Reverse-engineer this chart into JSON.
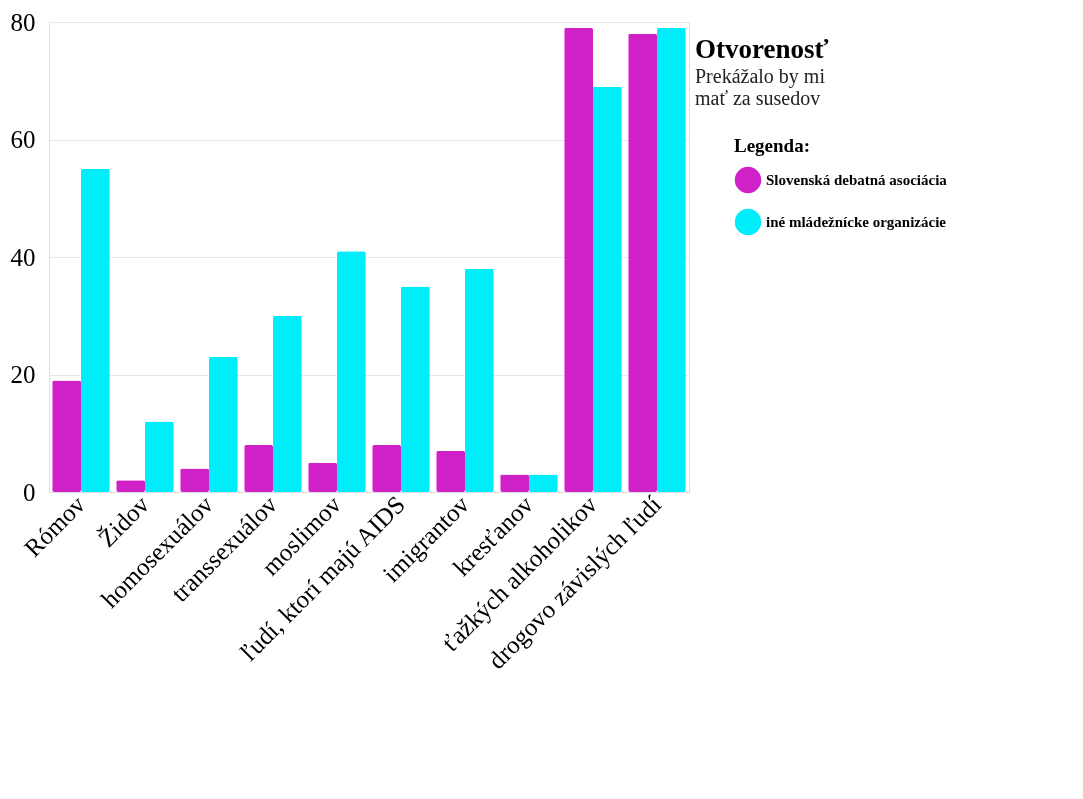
{
  "chart_data": {
    "type": "bar",
    "title": "Otvorenosť",
    "subtitle": "Prekážalo by mi\nmať za susedov",
    "legend_title": "Legenda:",
    "categories": [
      "Rómov",
      "Židov",
      "homosexuálov",
      "transsexuálov",
      "moslimov",
      "ľudí, ktorí majú AIDS",
      "imigrantov",
      "kresťanov",
      "ťažkých alkoholikov",
      "drogovo závislých ľudí"
    ],
    "series": [
      {
        "name": "Slovenská debatná asociácia",
        "color": "#d020c8",
        "values": [
          19,
          2,
          4,
          8,
          5,
          8,
          7,
          3,
          79,
          78
        ]
      },
      {
        "name": "iné mládežnícke organizácie",
        "color": "#00eefc",
        "values": [
          55,
          12,
          23,
          30,
          41,
          35,
          38,
          3,
          69,
          79
        ]
      }
    ],
    "ylim": [
      0,
      80
    ],
    "yticks": [
      0,
      20,
      40,
      60,
      80
    ],
    "grid": "y",
    "legend": "right"
  }
}
